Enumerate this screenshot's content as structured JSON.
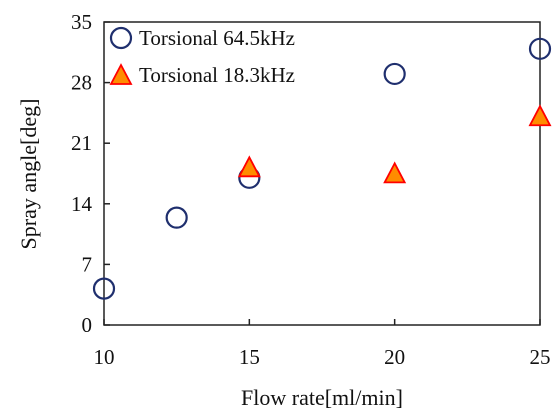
{
  "chart_data": {
    "type": "scatter",
    "xlabel": "Flow rate[ml/min]",
    "ylabel": "Spray  angle[deg]",
    "xlim": [
      10,
      25
    ],
    "ylim": [
      0,
      35
    ],
    "xticks": [
      10,
      15,
      20,
      25
    ],
    "yticks": [
      0,
      7,
      14,
      21,
      28,
      35
    ],
    "grid": false,
    "legend_position": "top-left",
    "series": [
      {
        "name": "Torsional 64.5kHz",
        "marker": "open-circle",
        "color": "#1f2f6e",
        "points": [
          {
            "x": 10,
            "y": 4.2
          },
          {
            "x": 12.5,
            "y": 12.4
          },
          {
            "x": 15,
            "y": 17.0
          },
          {
            "x": 20,
            "y": 29.0
          },
          {
            "x": 25,
            "y": 31.9
          }
        ]
      },
      {
        "name": "Torsional 18.3kHz",
        "marker": "filled-triangle",
        "color": "#ff0000",
        "fill": "#ff8c00",
        "points": [
          {
            "x": 15,
            "y": 18.1
          },
          {
            "x": 20,
            "y": 17.4
          },
          {
            "x": 25,
            "y": 24.0
          }
        ]
      }
    ]
  }
}
